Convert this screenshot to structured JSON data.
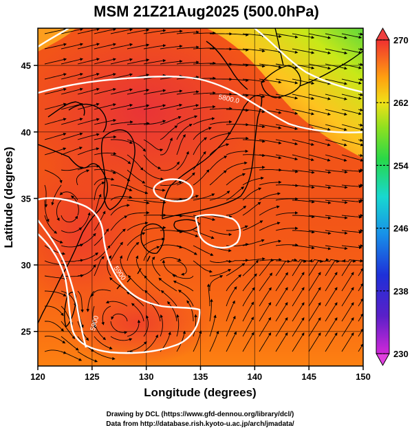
{
  "title": "MSM 21Z21Aug2025 (500.0hPa)",
  "x_axis": {
    "label": "Longitude (degrees)",
    "ticks": [
      "120",
      "125",
      "130",
      "135",
      "140",
      "145",
      "150"
    ]
  },
  "y_axis": {
    "label": "Latitude  (degrees)",
    "ticks": [
      "25",
      "30",
      "35",
      "40",
      "45"
    ]
  },
  "colorbar": {
    "ticks": [
      "270",
      "262",
      "254",
      "246",
      "238",
      "230"
    ]
  },
  "contour_labels": [
    "5800.0",
    "5900",
    "5900"
  ],
  "credits": {
    "line1": "Drawing by DCL (https://www.gfd-dennou.org/library/dcl/)",
    "line2": "Data from http://database.rish.kyoto-u.ac.jp/arch/jmadata/"
  },
  "colors": {
    "background": "#ffffff",
    "field_warm": "#ee3a1c",
    "field_mid": "#ff7a10",
    "field_cool": "#9ae01a",
    "contour": "#ffffff",
    "streamline": "#000000",
    "coastline": "#000000"
  },
  "map": {
    "projection": "equirectangular",
    "lon_range": [
      120,
      150
    ],
    "lat_range": [
      22.4,
      47.8
    ],
    "grid": true
  }
}
